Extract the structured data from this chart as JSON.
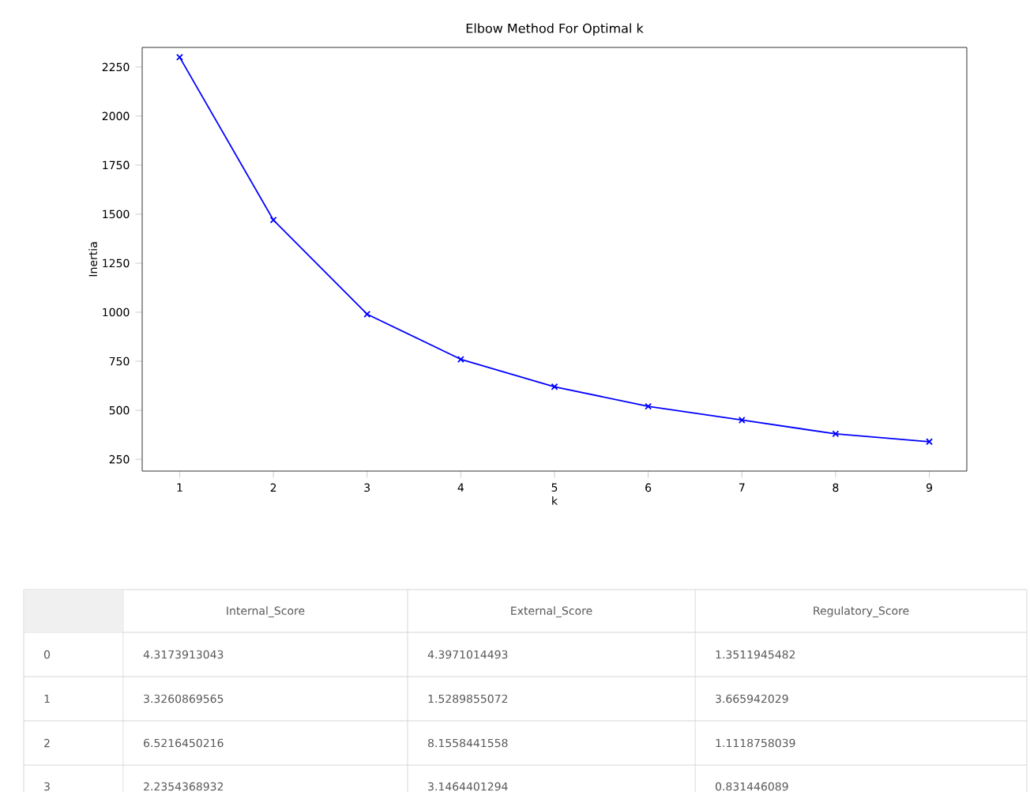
{
  "chart_data": {
    "type": "line",
    "title": "Elbow Method For Optimal k",
    "xlabel": "k",
    "ylabel": "Inertia",
    "x": [
      1,
      2,
      3,
      4,
      5,
      6,
      7,
      8,
      9
    ],
    "series": [
      {
        "color": "#0000ff",
        "values": [
          2300,
          1470,
          990,
          760,
          620,
          520,
          450,
          380,
          340
        ]
      }
    ],
    "xlim": [
      0.6,
      9.4
    ],
    "ylim": [
      190,
      2350
    ],
    "xticks": [
      1,
      2,
      3,
      4,
      5,
      6,
      7,
      8,
      9
    ],
    "yticks": [
      250,
      500,
      750,
      1000,
      1250,
      1500,
      1750,
      2000,
      2250
    ],
    "marker": "cross",
    "line_style": "solid",
    "grid": false,
    "annotations": [
      "Internal_Score",
      "External_Score",
      "Regulatory_Score",
      "0",
      "4.3173913043",
      "4.3971014493",
      "1.3511945482",
      "1",
      "3.3260869565",
      "1.5289855072",
      "3.665942029",
      "2",
      "6.5216450216",
      "8.1558441558",
      "1.1118758039",
      "3",
      "2.2354368932",
      "3.1464401294",
      "0.831446089"
    ]
  }
}
